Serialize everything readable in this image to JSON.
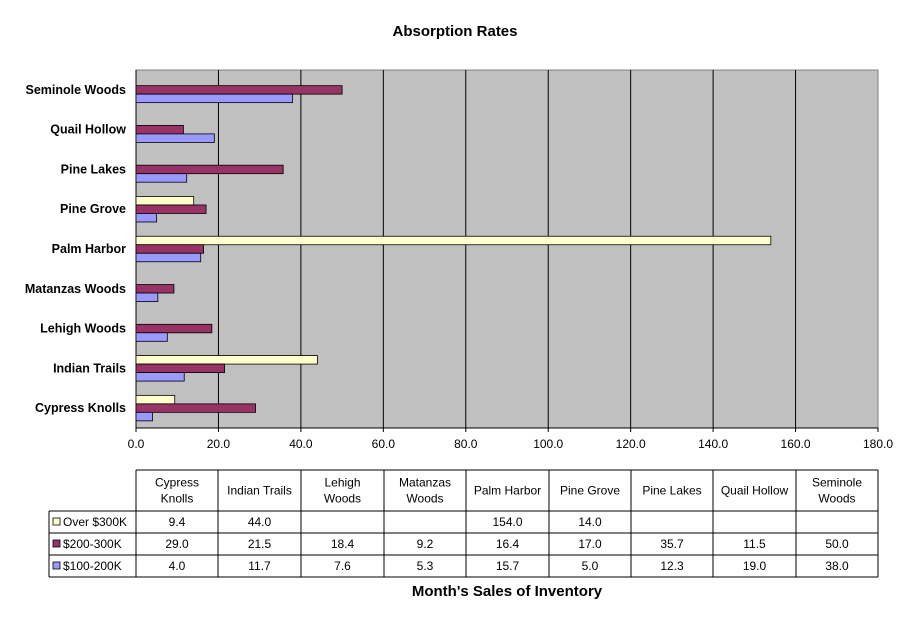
{
  "chart_data": {
    "type": "bar",
    "orientation": "horizontal",
    "title": "Absorption Rates",
    "xlabel": "Month's Sales of Inventory",
    "ylabel": "",
    "categories": [
      "Cypress Knolls",
      "Indian Trails",
      "Lehigh Woods",
      "Matanzas Woods",
      "Palm Harbor",
      "Pine Grove",
      "Pine Lakes",
      "Quail Hollow",
      "Seminole Woods"
    ],
    "table_headers": [
      [
        "Cypress",
        "Knolls"
      ],
      [
        "Indian Trails"
      ],
      [
        "Lehigh",
        "Woods"
      ],
      [
        "Matanzas",
        "Woods"
      ],
      [
        "Palm Harbor"
      ],
      [
        "Pine Grove"
      ],
      [
        "Pine Lakes"
      ],
      [
        "Quail Hollow"
      ],
      [
        "Seminole",
        "Woods"
      ]
    ],
    "series": [
      {
        "name": "Over $300K",
        "color": "#ffffcc",
        "values": [
          9.4,
          44.0,
          null,
          null,
          154.0,
          14.0,
          null,
          null,
          null
        ]
      },
      {
        "name": "$200-300K",
        "color": "#993366",
        "values": [
          29.0,
          21.5,
          18.4,
          9.2,
          16.4,
          17.0,
          35.7,
          11.5,
          50.0
        ]
      },
      {
        "name": "$100-200K",
        "color": "#9999ff",
        "values": [
          4.0,
          11.7,
          7.6,
          5.3,
          15.7,
          5.0,
          12.3,
          19.0,
          38.0
        ]
      }
    ],
    "xlim": [
      0,
      180
    ],
    "xticks": [
      0,
      20,
      40,
      60,
      80,
      100,
      120,
      140,
      160,
      180
    ],
    "tick_format": "one-decimal",
    "plot_background": "#c0c0c0",
    "grid": true,
    "legend": "data-table-below"
  }
}
